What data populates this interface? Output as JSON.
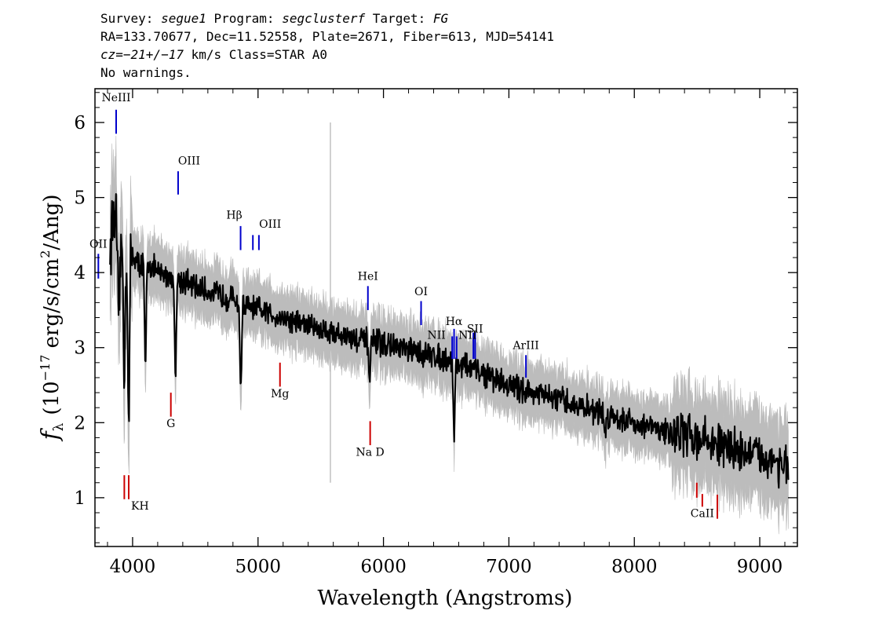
{
  "header": {
    "line1": {
      "survey_label": "Survey: ",
      "survey": "segue1",
      "program_label": " Program: ",
      "program": "segclusterf",
      "target_label": " Target: ",
      "target": "FG"
    },
    "line2": "RA=133.70677, Dec=11.52558, Plate=2671, Fiber=613, MJD=54141",
    "line3": {
      "cz": "cz=−21+/−17",
      "rest": " km/s Class=STAR A0"
    },
    "line4": "No warnings."
  },
  "colors": {
    "flux": "#000000",
    "error_band": "#bcbcbc",
    "emission_line": "#0000cc",
    "absorption_line": "#cc0000"
  },
  "chart_data": {
    "type": "line",
    "xlabel": "Wavelength (Angstroms)",
    "ylabel": "f_λ (10^−17 erg/s/cm^2/Ang)",
    "ylabel_parts": {
      "f": "f",
      "lambda": "λ",
      "open": "(10",
      "exp": "−17",
      "mid": " erg/s/cm",
      "sq": "2",
      "close": "/Ang)"
    },
    "xlim": [
      3700,
      9300
    ],
    "ylim": [
      0.35,
      6.45
    ],
    "x_ticks": [
      4000,
      5000,
      6000,
      7000,
      8000,
      9000
    ],
    "x_tick_labels": [
      "4000",
      "5000",
      "6000",
      "7000",
      "8000",
      "9000"
    ],
    "y_ticks": [
      1,
      2,
      3,
      4,
      5,
      6
    ],
    "y_tick_labels": [
      "1",
      "2",
      "3",
      "4",
      "5",
      "6"
    ],
    "grid": false,
    "spectrum_anchor_points": {
      "x": [
        3800,
        3830,
        3850,
        3870,
        3900,
        3950,
        4000,
        4050,
        4100,
        4150,
        4200,
        4300,
        4400,
        4500,
        4600,
        4700,
        4800,
        4900,
        5000,
        5100,
        5200,
        5400,
        5600,
        5800,
        6000,
        6200,
        6400,
        6600,
        6800,
        7000,
        7200,
        7400,
        7600,
        7800,
        8000,
        8200,
        8400,
        8600,
        8800,
        9000,
        9100,
        9200,
        9230
      ],
      "y": [
        3.7,
        4.5,
        4.8,
        4.6,
        4.3,
        4.2,
        4.25,
        4.1,
        4.15,
        4.1,
        4.0,
        3.95,
        3.9,
        3.8,
        3.75,
        3.7,
        3.65,
        3.55,
        3.5,
        3.45,
        3.4,
        3.3,
        3.2,
        3.1,
        3.05,
        2.95,
        2.9,
        2.8,
        2.65,
        2.5,
        2.4,
        2.3,
        2.2,
        2.1,
        2.0,
        1.9,
        1.85,
        1.75,
        1.65,
        1.55,
        1.5,
        1.45,
        1.35
      ]
    },
    "absorption_dips": [
      {
        "x": 3889,
        "depth": 1.1
      },
      {
        "x": 3934,
        "depth": 1.6
      },
      {
        "x": 3969,
        "depth": 2.3
      },
      {
        "x": 4102,
        "depth": 1.5
      },
      {
        "x": 4341,
        "depth": 1.3
      },
      {
        "x": 4862,
        "depth": 1.2
      },
      {
        "x": 5890,
        "depth": 0.55
      },
      {
        "x": 6563,
        "depth": 1.0
      },
      {
        "x": 7770,
        "depth": 0.3
      }
    ],
    "noise_amplitude": 0.13,
    "error_band_halfwidth": 0.3,
    "sky_line": {
      "x": 5577,
      "y_top": 6.0,
      "y_bottom": 1.2
    },
    "emission_lines": [
      {
        "label": "NeIII",
        "x": 3869,
        "y0": 5.85,
        "y1": 6.17,
        "label_y": 6.28,
        "label_dx": 0
      },
      {
        "label": "OII",
        "x": 3727,
        "y0": 3.92,
        "y1": 4.25,
        "label_y": 4.33,
        "label_dx": 0
      },
      {
        "label": "OIII",
        "x": 4363,
        "y0": 5.04,
        "y1": 5.35,
        "label_y": 5.44,
        "label_dx": 14
      },
      {
        "label": "Hβ",
        "x": 4861,
        "y0": 4.3,
        "y1": 4.62,
        "label_y": 4.72,
        "label_dx": -8
      },
      {
        "label": "OIII",
        "x": 4959,
        "y0": 4.3,
        "y1": 4.5,
        "label_y": 4.6,
        "label_dx": 22
      },
      {
        "label": "",
        "x": 5007,
        "y0": 4.3,
        "y1": 4.5,
        "label_y": 4.6,
        "label_dx": 0
      },
      {
        "label": "HeI",
        "x": 5876,
        "y0": 3.5,
        "y1": 3.82,
        "label_y": 3.9,
        "label_dx": 0
      },
      {
        "label": "OI",
        "x": 6300,
        "y0": 3.3,
        "y1": 3.62,
        "label_y": 3.7,
        "label_dx": 0
      },
      {
        "label": "NII",
        "x": 6548,
        "y0": 2.85,
        "y1": 3.15,
        "label_y": 3.12,
        "label_dx": -20
      },
      {
        "label": "Hα",
        "x": 6563,
        "y0": 2.85,
        "y1": 3.25,
        "label_y": 3.3,
        "label_dx": 0
      },
      {
        "label": "NII",
        "x": 6583,
        "y0": 2.85,
        "y1": 3.15,
        "label_y": 3.12,
        "label_dx": 14
      },
      {
        "label": "SII",
        "x": 6717,
        "y0": 2.85,
        "y1": 3.2,
        "label_y": 3.2,
        "label_dx": 2
      },
      {
        "label": "",
        "x": 6731,
        "y0": 2.85,
        "y1": 3.2,
        "label_y": 3.2,
        "label_dx": 0
      },
      {
        "label": "ArIII",
        "x": 7136,
        "y0": 2.6,
        "y1": 2.9,
        "label_y": 2.98,
        "label_dx": 0
      }
    ],
    "absorption_lines": [
      {
        "label": "KH",
        "x": 3934,
        "y0": 0.98,
        "y1": 1.3,
        "label_y": 0.84,
        "label_dx": 20
      },
      {
        "label": "",
        "x": 3969,
        "y0": 0.98,
        "y1": 1.3,
        "label_y": 0.84,
        "label_dx": 0
      },
      {
        "label": "G",
        "x": 4305,
        "y0": 2.08,
        "y1": 2.4,
        "label_y": 1.94,
        "label_dx": 0
      },
      {
        "label": "Mg",
        "x": 5175,
        "y0": 2.48,
        "y1": 2.8,
        "label_y": 2.34,
        "label_dx": 0
      },
      {
        "label": "Na D",
        "x": 5894,
        "y0": 1.7,
        "y1": 2.02,
        "label_y": 1.56,
        "label_dx": 0
      },
      {
        "label": "CaII",
        "x": 8542,
        "y0": 0.88,
        "y1": 1.05,
        "label_y": 0.74,
        "label_dx": 0
      },
      {
        "label": "",
        "x": 8498,
        "y0": 1.0,
        "y1": 1.2,
        "label_y": 0.9,
        "label_dx": 0
      },
      {
        "label": "",
        "x": 8662,
        "y0": 0.72,
        "y1": 1.04,
        "label_y": 0.6,
        "label_dx": 0
      }
    ]
  }
}
